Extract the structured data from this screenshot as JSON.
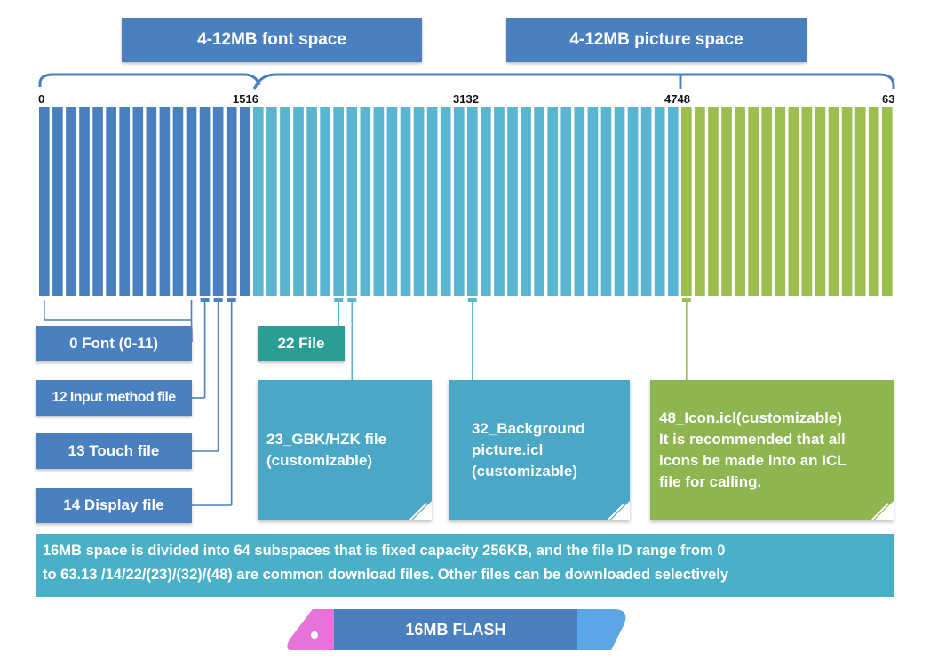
{
  "headers": {
    "font_space": "4-12MB font space",
    "picture_space": "4-12MB picture space"
  },
  "scale": {
    "tick_0": "0",
    "tick_1516": "1516",
    "tick_3132": "3132",
    "tick_4748": "4748",
    "tick_63": "63"
  },
  "subspaces": {
    "count": 64,
    "blue_end_index": 15,
    "teal_end_index": 47,
    "colors": {
      "font_zone": "#4a80bf",
      "picture_zone": "#5ab6d0",
      "icon_zone": "#9cbe4f",
      "label_teal": "#2a9d94",
      "card_teal": "#4aa7c5",
      "card_green": "#8fb551",
      "info_bar": "#4ab0c8"
    }
  },
  "labels": {
    "font": "0 Font (0-11)",
    "input_method": "12 Input method file",
    "touch": "13 Touch file",
    "display": "14 Display file",
    "file22": "22 File"
  },
  "cards": {
    "gbk": [
      "23_GBK/HZK file",
      "(customizable)"
    ],
    "background": [
      "32_Background",
      "picture.icl",
      "(customizable)"
    ],
    "icon": [
      "48_Icon.icl(customizable)",
      "It is recommended that all",
      "icons be made into an ICL",
      "file for calling."
    ]
  },
  "info": {
    "line1": "16MB space is divided into 64 subspaces that is fixed capacity 256KB, and the file ID range from 0",
    "line2": "to 63.13 /14/22/(23)/(32)/(48) are common download files. Other files can be downloaded selectively"
  },
  "flash": {
    "label": "16MB FLASH"
  }
}
